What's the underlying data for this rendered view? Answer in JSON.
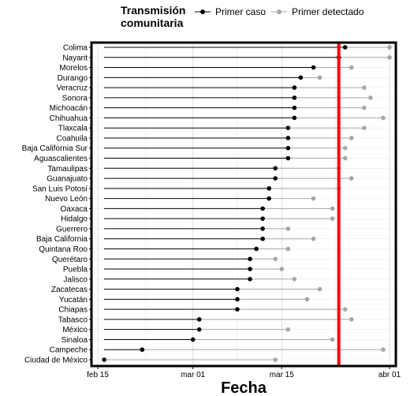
{
  "chart_data": {
    "type": "dot-range",
    "xlabel": "Fecha",
    "legend": {
      "title_lines": [
        "Transmisión",
        "comunitaria"
      ],
      "entries": [
        {
          "label": "Primer caso",
          "color": "#000000"
        },
        {
          "label": "Primer detectado",
          "color": "#a6a6a6"
        }
      ],
      "placement": "top"
    },
    "x_axis": {
      "start": "2020-02-14",
      "end": "2020-04-02",
      "ticks": [
        {
          "date": "2020-02-15",
          "label": "feb 15"
        },
        {
          "date": "2020-03-01",
          "label": "mar 01"
        },
        {
          "date": "2020-03-15",
          "label": "mar 15"
        },
        {
          "date": "2020-04-01",
          "label": "abr 01"
        }
      ]
    },
    "reference_line": {
      "date": "2020-03-24",
      "color": "#ff0000"
    },
    "colors": {
      "primer_caso": "#000000",
      "primer_detectado": "#a6a6a6",
      "reference": "#ff0000"
    },
    "states": [
      {
        "name": "Colima",
        "primer_caso": "2020-03-25",
        "primer_detectado": "2020-04-01"
      },
      {
        "name": "Nayarit",
        "primer_caso": "2020-03-24",
        "primer_detectado": "2020-04-01"
      },
      {
        "name": "Morelos",
        "primer_caso": "2020-03-20",
        "primer_detectado": "2020-03-26"
      },
      {
        "name": "Durango",
        "primer_caso": "2020-03-18",
        "primer_detectado": "2020-03-21"
      },
      {
        "name": "Veracruz",
        "primer_caso": "2020-03-17",
        "primer_detectado": "2020-03-28"
      },
      {
        "name": "Sonora",
        "primer_caso": "2020-03-17",
        "primer_detectado": "2020-03-29"
      },
      {
        "name": "Michoacán",
        "primer_caso": "2020-03-17",
        "primer_detectado": "2020-03-28"
      },
      {
        "name": "Chihuahua",
        "primer_caso": "2020-03-17",
        "primer_detectado": "2020-03-31"
      },
      {
        "name": "Tlaxcala",
        "primer_caso": "2020-03-16",
        "primer_detectado": "2020-03-28"
      },
      {
        "name": "Coahuila",
        "primer_caso": "2020-03-16",
        "primer_detectado": "2020-03-26"
      },
      {
        "name": "Baja California Sur",
        "primer_caso": "2020-03-16",
        "primer_detectado": "2020-03-25"
      },
      {
        "name": "Aguascalientes",
        "primer_caso": "2020-03-16",
        "primer_detectado": "2020-03-25"
      },
      {
        "name": "Tamaulipas",
        "primer_caso": "2020-03-14",
        "primer_detectado": "2020-03-24"
      },
      {
        "name": "Guanajuato",
        "primer_caso": "2020-03-14",
        "primer_detectado": "2020-03-26"
      },
      {
        "name": "San Luis Potosí",
        "primer_caso": "2020-03-13",
        "primer_detectado": "2020-03-24"
      },
      {
        "name": "Nuevo León",
        "primer_caso": "2020-03-13",
        "primer_detectado": "2020-03-20"
      },
      {
        "name": "Oaxaca",
        "primer_caso": "2020-03-12",
        "primer_detectado": "2020-03-23"
      },
      {
        "name": "Hidalgo",
        "primer_caso": "2020-03-12",
        "primer_detectado": "2020-03-23"
      },
      {
        "name": "Guerrero",
        "primer_caso": "2020-03-12",
        "primer_detectado": "2020-03-16"
      },
      {
        "name": "Baja California",
        "primer_caso": "2020-03-12",
        "primer_detectado": "2020-03-20"
      },
      {
        "name": "Quintana Roo",
        "primer_caso": "2020-03-11",
        "primer_detectado": "2020-03-16"
      },
      {
        "name": "Querétaro",
        "primer_caso": "2020-03-10",
        "primer_detectado": "2020-03-14"
      },
      {
        "name": "Puebla",
        "primer_caso": "2020-03-10",
        "primer_detectado": "2020-03-15"
      },
      {
        "name": "Jalisco",
        "primer_caso": "2020-03-10",
        "primer_detectado": "2020-03-17"
      },
      {
        "name": "Zacatecas",
        "primer_caso": "2020-03-08",
        "primer_detectado": "2020-03-21"
      },
      {
        "name": "Yucatán",
        "primer_caso": "2020-03-08",
        "primer_detectado": "2020-03-19"
      },
      {
        "name": "Chiapas",
        "primer_caso": "2020-03-08",
        "primer_detectado": "2020-03-25"
      },
      {
        "name": "Tabasco",
        "primer_caso": "2020-03-02",
        "primer_detectado": "2020-03-26"
      },
      {
        "name": "México",
        "primer_caso": "2020-03-02",
        "primer_detectado": "2020-03-16"
      },
      {
        "name": "Sinaloa",
        "primer_caso": "2020-03-01",
        "primer_detectado": "2020-03-23"
      },
      {
        "name": "Campeche",
        "primer_caso": "2020-02-22",
        "primer_detectado": "2020-03-31"
      },
      {
        "name": "Ciudad de México",
        "primer_caso": "2020-02-16",
        "primer_detectado": "2020-03-14"
      }
    ]
  }
}
